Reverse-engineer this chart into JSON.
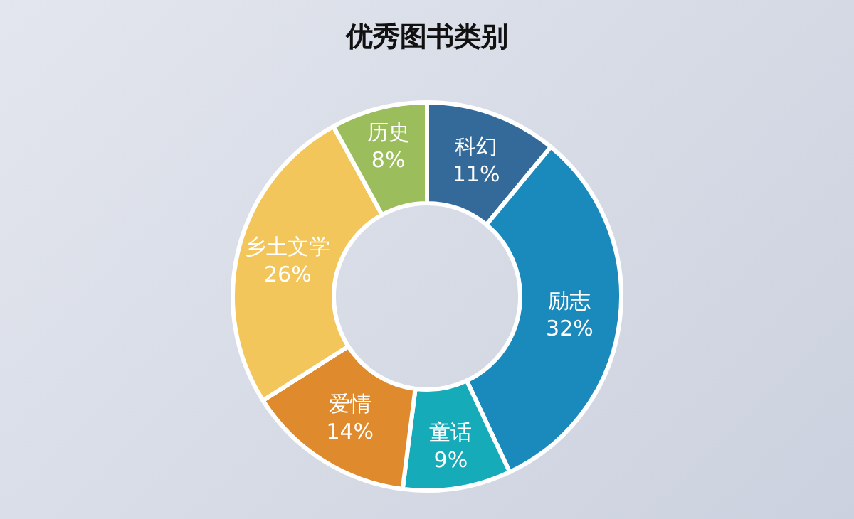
{
  "chart_data": {
    "type": "donut",
    "title": "优秀图书类别",
    "categories": [
      "科幻",
      "励志",
      "童话",
      "爱情",
      "乡土文学",
      "历史"
    ],
    "values": [
      11,
      32,
      9,
      14,
      26,
      8
    ],
    "value_labels": [
      "11%",
      "32%",
      "9%",
      "14%",
      "26%",
      "8%"
    ],
    "colors": [
      "#336a9a",
      "#1a8abd",
      "#15abb8",
      "#df8a2c",
      "#f2c65a",
      "#9bbd5b"
    ],
    "legend": false
  }
}
